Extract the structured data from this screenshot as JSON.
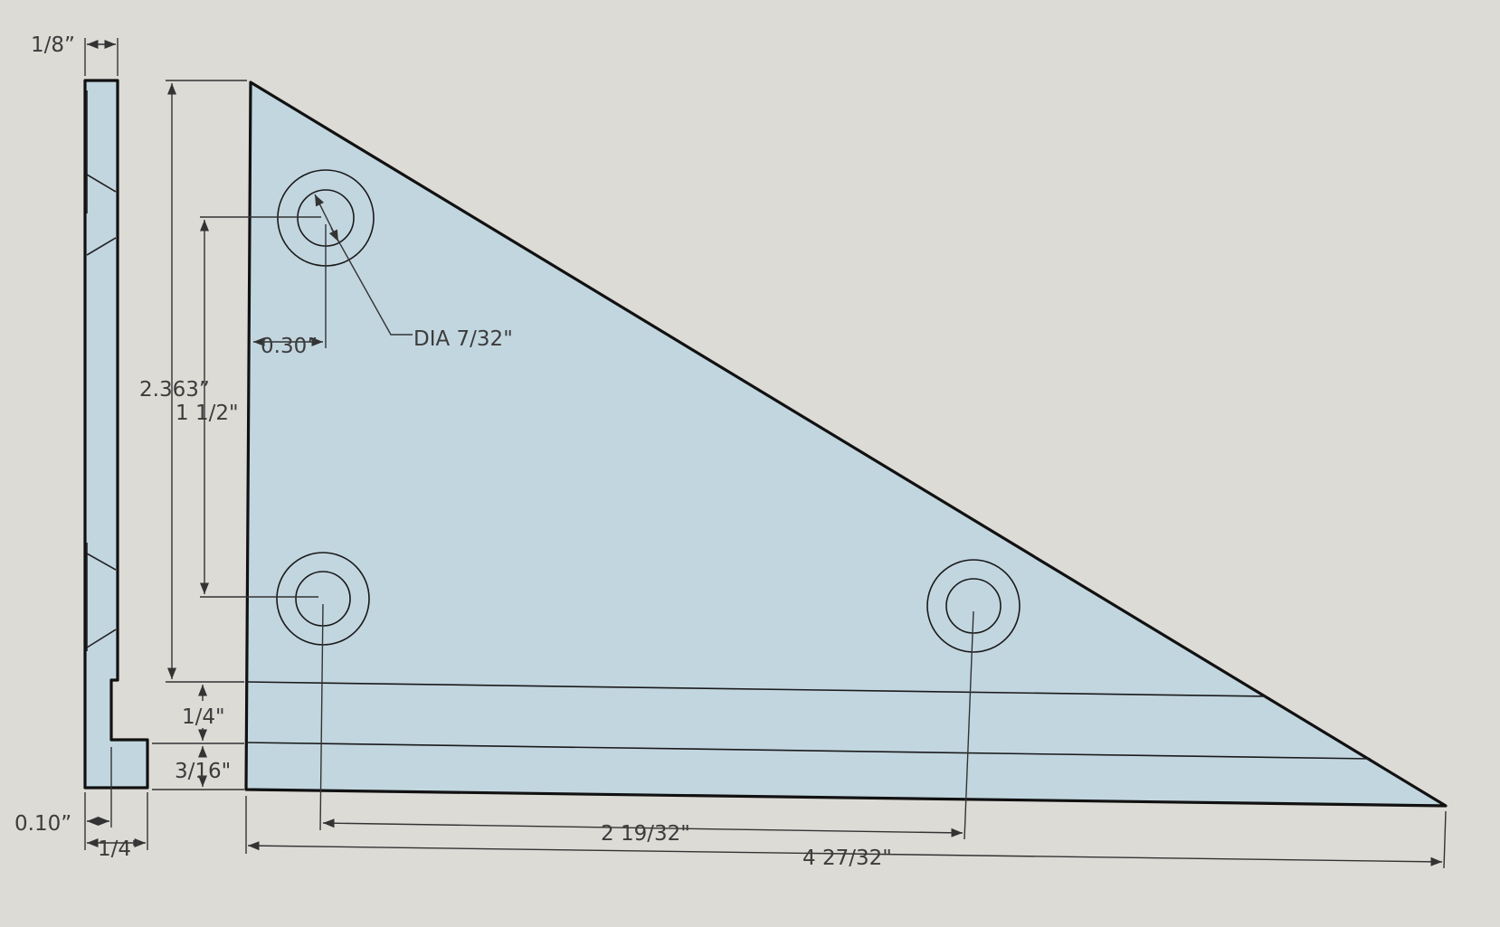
{
  "colors": {
    "background": "#dcdbd6",
    "part_fill": "#c2d6e0",
    "outline": "#111111",
    "dimension": "#3c3c3c"
  },
  "dimensions": {
    "side_thickness": "1/8”",
    "side_foot_offset": "0.10”",
    "side_foot_width": "1/4\"",
    "overall_height": "2.363”",
    "hole_spacing_vertical": "1 1/2\"",
    "hole_edge_offset": "0.30”",
    "hole_diameter": "DIA 7/32\"",
    "step_upper": "1/4\"",
    "step_lower": "3/16\"",
    "hole_spacing_horizontal": "2 19/32\"",
    "overall_length": "4 27/32\""
  }
}
